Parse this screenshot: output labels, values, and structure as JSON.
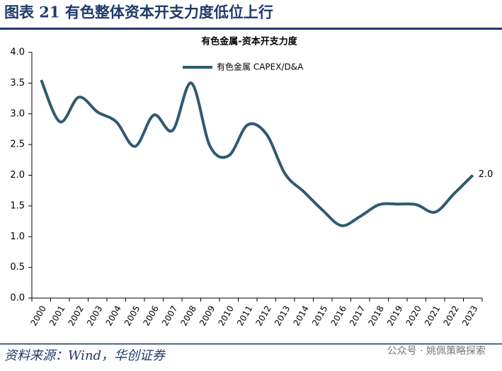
{
  "header": {
    "title": "图表 21 有色整体资本开支力度低位上行"
  },
  "chart_data": {
    "type": "line",
    "title": "有色金属-资本开支力度",
    "categories": [
      "2000",
      "2001",
      "2002",
      "2003",
      "2004",
      "2005",
      "2006",
      "2007",
      "2008",
      "2009",
      "2010",
      "2011",
      "2012",
      "2013",
      "2014",
      "2015",
      "2016",
      "2017",
      "2018",
      "2019",
      "2020",
      "2021",
      "2022",
      "2023"
    ],
    "series": [
      {
        "name": "有色金属 CAPEX/D&A",
        "color": "#2f5a72",
        "values": [
          3.55,
          2.87,
          3.27,
          3.03,
          2.87,
          2.47,
          2.98,
          2.73,
          3.5,
          2.47,
          2.32,
          2.82,
          2.67,
          2.02,
          1.73,
          1.43,
          1.18,
          1.33,
          1.52,
          1.53,
          1.52,
          1.4,
          1.7,
          2.0
        ],
        "value_labels": [
          null,
          null,
          null,
          null,
          null,
          null,
          null,
          null,
          null,
          null,
          null,
          null,
          null,
          null,
          null,
          null,
          null,
          null,
          null,
          null,
          null,
          null,
          null,
          "2.0"
        ]
      }
    ],
    "ylim": [
      0,
      4
    ],
    "yticks": [
      {
        "value": 0,
        "label": "0.0"
      },
      0.5,
      {
        "value": 1,
        "label": "1.0"
      },
      1.5,
      {
        "value": 2,
        "label": "2.0"
      },
      2.5,
      {
        "value": 3,
        "label": "3.0"
      },
      3.5,
      {
        "value": 4,
        "label": "4.0"
      }
    ],
    "legend": "top"
  },
  "footer": {
    "source": "资料来源：Wind，华创证券",
    "watermark": "公众号 · 姚佩策略探索"
  }
}
